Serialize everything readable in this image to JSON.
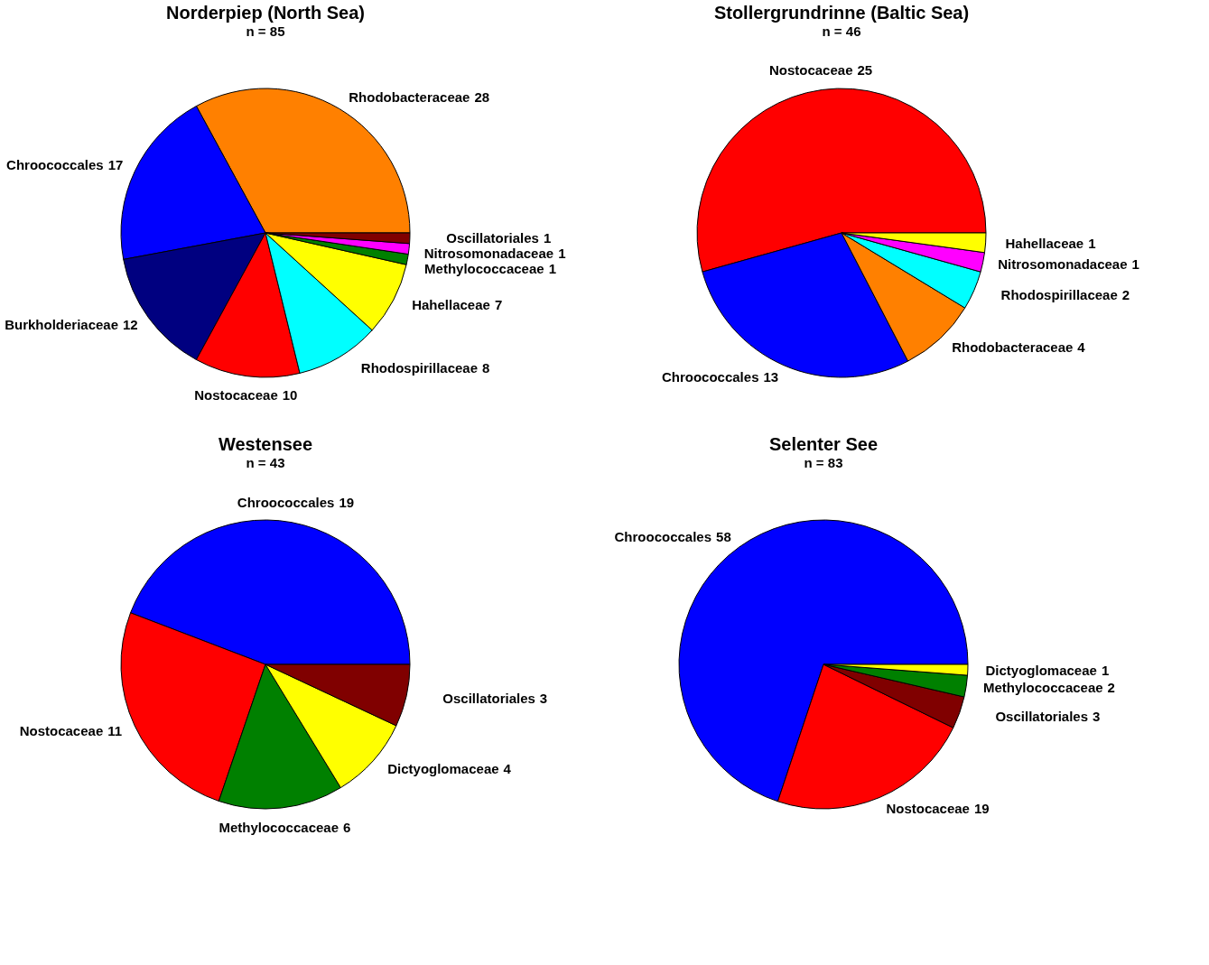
{
  "chart_data": [
    {
      "type": "pie",
      "title": "Norderpiep (North Sea)",
      "subtitle": "n = 85",
      "data_labels": true,
      "categories": [
        "Rhodobacteraceae",
        "Chroococcales",
        "Burkholderiaceae",
        "Nostocaceae",
        "Rhodospirillaceae",
        "Hahellaceae",
        "Methylococcaceae",
        "Nitrosomonadaceae",
        "Oscillatoriales"
      ],
      "values": [
        28,
        17,
        12,
        10,
        8,
        7,
        1,
        1,
        1
      ],
      "colors": [
        "#ff8000",
        "#0000ff",
        "#000080",
        "#ff0000",
        "#00ffff",
        "#ffff00",
        "#008000",
        "#ff00ff",
        "#800000"
      ]
    },
    {
      "type": "pie",
      "title": "Stollergrundrinne (Baltic Sea)",
      "subtitle": "n = 46",
      "data_labels": true,
      "categories": [
        "Nostocaceae",
        "Chroococcales",
        "Rhodobacteraceae",
        "Rhodospirillaceae",
        "Nitrosomonadaceae",
        "Hahellaceae"
      ],
      "values": [
        25,
        13,
        4,
        2,
        1,
        1
      ],
      "colors": [
        "#ff0000",
        "#0000ff",
        "#ff8000",
        "#00ffff",
        "#ff00ff",
        "#ffff00"
      ]
    },
    {
      "type": "pie",
      "title": "Westensee",
      "subtitle": "n = 43",
      "data_labels": true,
      "categories": [
        "Chroococcales",
        "Nostocaceae",
        "Methylococcaceae",
        "Dictyoglomaceae",
        "Oscillatoriales"
      ],
      "values": [
        19,
        11,
        6,
        4,
        3
      ],
      "colors": [
        "#0000ff",
        "#ff0000",
        "#008000",
        "#ffff00",
        "#800000"
      ]
    },
    {
      "type": "pie",
      "title": "Selenter See",
      "subtitle": "n = 83",
      "data_labels": true,
      "categories": [
        "Chroococcales",
        "Nostocaceae",
        "Oscillatoriales",
        "Methylococcaceae",
        "Dictyoglomaceae"
      ],
      "values": [
        58,
        19,
        3,
        2,
        1
      ],
      "colors": [
        "#0000ff",
        "#ff0000",
        "#800000",
        "#008000",
        "#ffff00"
      ]
    }
  ]
}
